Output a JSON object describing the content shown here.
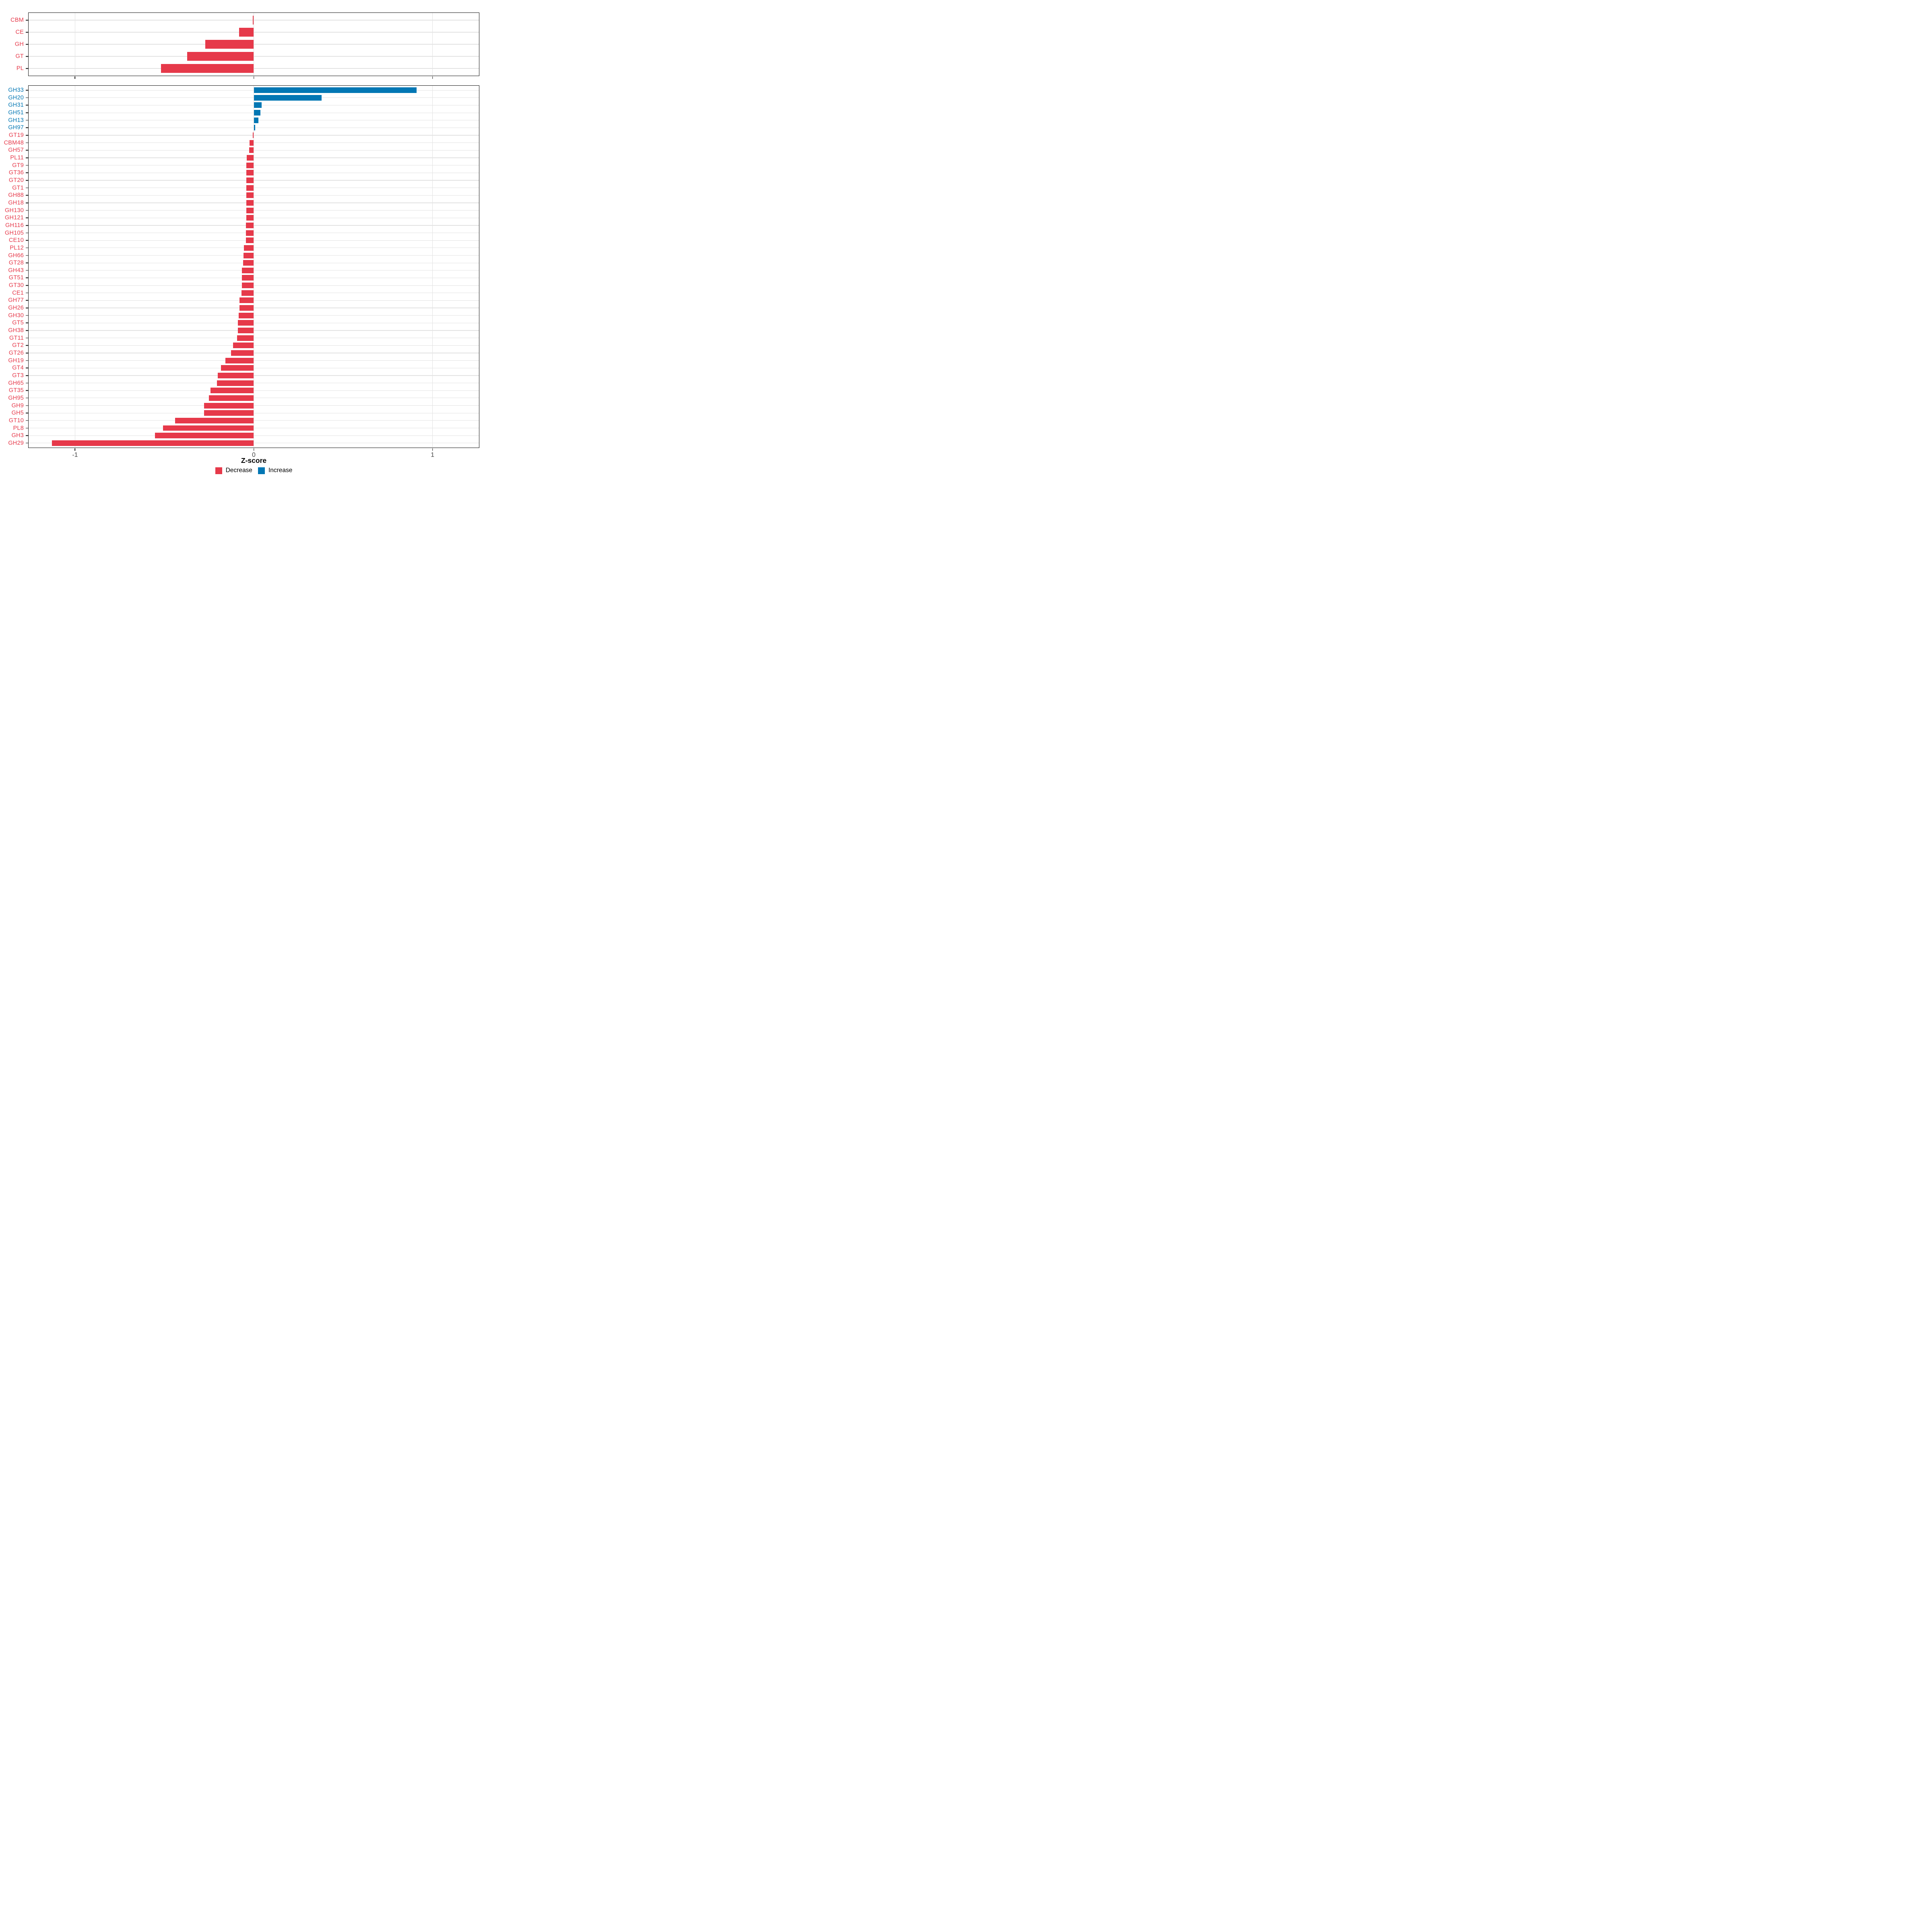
{
  "figure": {
    "axis_title": "Z-score",
    "x_domain": [
      -1.26,
      1.26
    ],
    "x_ticks": [
      -1,
      0,
      1
    ],
    "x_tick_labels": [
      "-1",
      "0",
      "1"
    ],
    "colors": {
      "decrease": "#E6394A",
      "increase": "#0277B4",
      "grid": "#E2E2E2",
      "panel_border": "#141414",
      "x_tick_label": "#474747",
      "background": "#ffffff"
    },
    "legend": [
      {
        "label": "Decrease",
        "color": "#E6394A"
      },
      {
        "label": "Increase",
        "color": "#0277B4"
      }
    ]
  },
  "chart_data": [
    {
      "type": "bar",
      "orientation": "horizontal",
      "panel": "cazyme-classes",
      "title": "",
      "xlabel": "Z-score",
      "ylabel": "",
      "xlim": [
        -1.26,
        1.26
      ],
      "grid": true,
      "show_x_labels": false,
      "categories": [
        "CBM",
        "CE",
        "GH",
        "GT",
        "PL"
      ],
      "values": [
        -0.005,
        -0.082,
        -0.272,
        -0.372,
        -0.518
      ],
      "series_colors_rule": "negative=decrease(red), positive=increase(blue)"
    },
    {
      "type": "bar",
      "orientation": "horizontal",
      "panel": "cazyme-families",
      "title": "",
      "xlabel": "Z-score",
      "ylabel": "",
      "xlim": [
        -1.26,
        1.26
      ],
      "grid": true,
      "show_x_labels": true,
      "categories": [
        "GH33",
        "GH20",
        "GH31",
        "GH51",
        "GH13",
        "GH97",
        "GT19",
        "CBM48",
        "GH57",
        "PL11",
        "GT9",
        "GT36",
        "GT20",
        "GT1",
        "GH88",
        "GH18",
        "GH130",
        "GH121",
        "GH116",
        "GH105",
        "CE10",
        "PL12",
        "GH66",
        "GT28",
        "GH43",
        "GT51",
        "GT30",
        "CE1",
        "GH77",
        "GH26",
        "GH30",
        "GT5",
        "GH38",
        "GT11",
        "GT2",
        "GT26",
        "GH19",
        "GT4",
        "GT3",
        "GH65",
        "GT35",
        "GH95",
        "GH9",
        "GH5",
        "GT10",
        "PL8",
        "GH3",
        "GH29"
      ],
      "values": [
        0.91,
        0.38,
        0.043,
        0.037,
        0.025,
        0.009,
        -0.006,
        -0.023,
        -0.025,
        -0.04,
        -0.041,
        -0.041,
        -0.042,
        -0.042,
        -0.042,
        -0.042,
        -0.042,
        -0.042,
        -0.043,
        -0.043,
        -0.044,
        -0.055,
        -0.058,
        -0.059,
        -0.066,
        -0.066,
        -0.067,
        -0.068,
        -0.079,
        -0.079,
        -0.084,
        -0.09,
        -0.09,
        -0.094,
        -0.116,
        -0.128,
        -0.158,
        -0.183,
        -0.201,
        -0.207,
        -0.243,
        -0.252,
        -0.277,
        -0.278,
        -0.441,
        -0.508,
        -0.552,
        -1.13
      ],
      "series_colors_rule": "negative=decrease(red), positive=increase(blue)"
    }
  ]
}
